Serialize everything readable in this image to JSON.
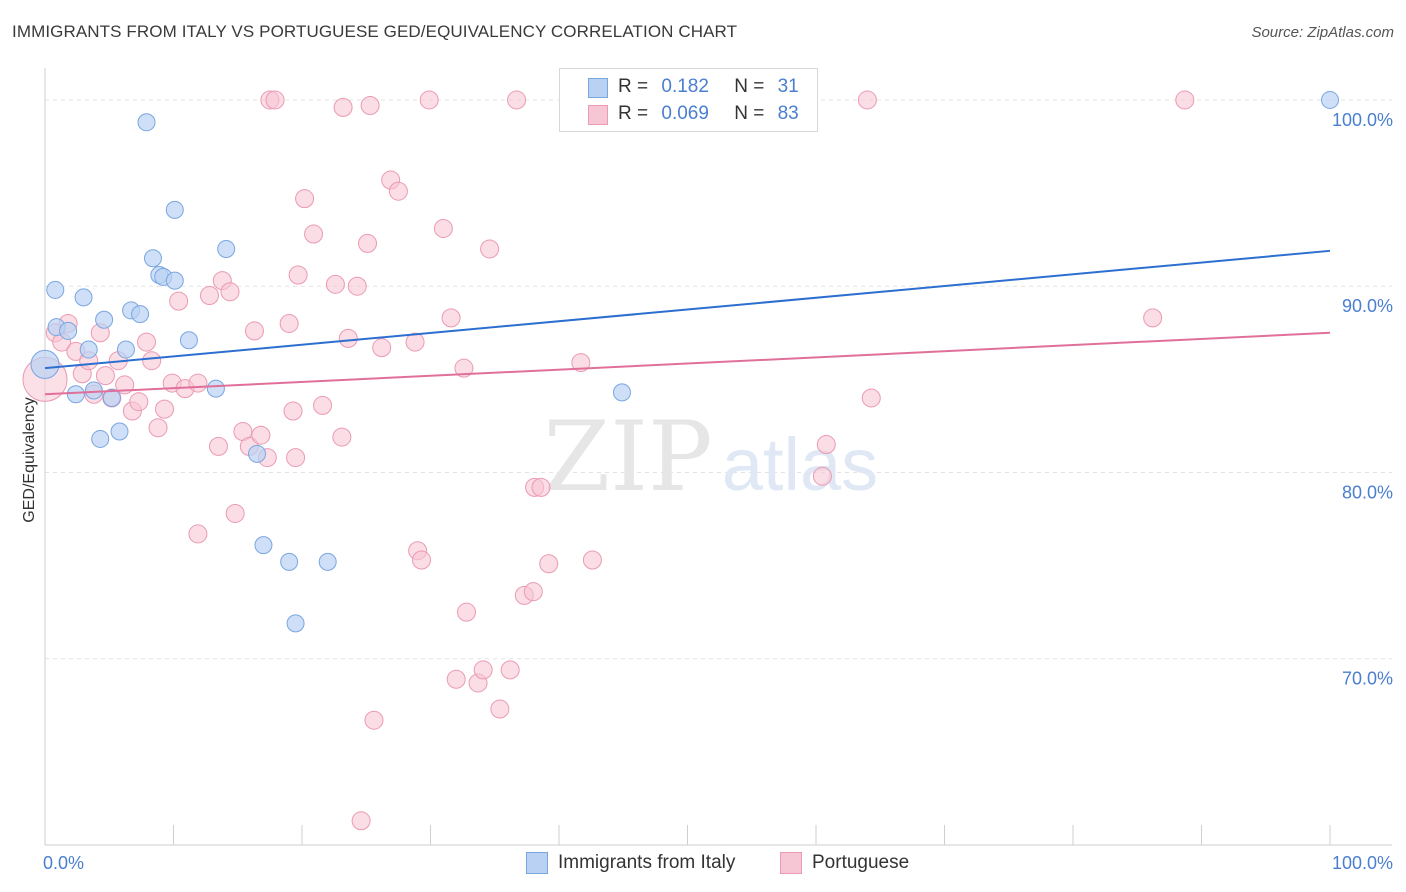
{
  "title": "IMMIGRANTS FROM ITALY VS PORTUGUESE GED/EQUIVALENCY CORRELATION CHART",
  "source": "Source: ZipAtlas.com",
  "watermark": {
    "zip": "ZIP",
    "atlas": "atlas"
  },
  "colors": {
    "blue_fill": "#b9d2f3",
    "blue_stroke": "#7aa6e0",
    "blue_line": "#2d6fd0",
    "pink_fill": "#f7c6d4",
    "pink_stroke": "#eb9ab3",
    "pink_line": "#e0709a",
    "tick_label": "#4a7fd0",
    "grid": "#e3e3e3"
  },
  "legend": {
    "r_label": "R =",
    "n_label": "N =",
    "italy": {
      "r": "0.182",
      "n": "31"
    },
    "portuguese": {
      "r": "0.069",
      "n": "83"
    }
  },
  "chart_data": {
    "type": "scatter",
    "title": "IMMIGRANTS FROM ITALY VS PORTUGUESE GED/EQUIVALENCY CORRELATION CHART",
    "xlabel": "",
    "ylabel": "GED/Equivalency",
    "xlim": [
      0,
      1.0
    ],
    "ylim": [
      0.6,
      1.015
    ],
    "x_tick_labels": [
      "0.0%",
      "100.0%"
    ],
    "y_ticks": [
      {
        "value": 1.0,
        "label": "100.0%"
      },
      {
        "value": 0.9,
        "label": "90.0%"
      },
      {
        "value": 0.8,
        "label": "80.0%"
      },
      {
        "value": 0.7,
        "label": "70.0%"
      }
    ],
    "series": [
      {
        "name": "Immigrants from Italy",
        "color": "#7aa6e0",
        "trend": {
          "x0": 0.0,
          "y0": 0.856,
          "x1": 1.0,
          "y1": 0.919
        },
        "points": [
          [
            0.0,
            0.858
          ],
          [
            0.008,
            0.898
          ],
          [
            0.009,
            0.878
          ],
          [
            0.018,
            0.876
          ],
          [
            0.024,
            0.842
          ],
          [
            0.03,
            0.894
          ],
          [
            0.034,
            0.866
          ],
          [
            0.038,
            0.844
          ],
          [
            0.043,
            0.818
          ],
          [
            0.046,
            0.882
          ],
          [
            0.052,
            0.84
          ],
          [
            0.058,
            0.822
          ],
          [
            0.063,
            0.866
          ],
          [
            0.067,
            0.887
          ],
          [
            0.074,
            0.885
          ],
          [
            0.079,
            0.988
          ],
          [
            0.084,
            0.915
          ],
          [
            0.089,
            0.906
          ],
          [
            0.092,
            0.905
          ],
          [
            0.101,
            0.903
          ],
          [
            0.101,
            0.941
          ],
          [
            0.112,
            0.871
          ],
          [
            0.133,
            0.845
          ],
          [
            0.141,
            0.92
          ],
          [
            0.165,
            0.81
          ],
          [
            0.17,
            0.761
          ],
          [
            0.19,
            0.752
          ],
          [
            0.195,
            0.719
          ],
          [
            0.22,
            0.752
          ],
          [
            0.449,
            0.843
          ],
          [
            1.0,
            1.0
          ]
        ]
      },
      {
        "name": "Portuguese",
        "color": "#eb9ab3",
        "trend": {
          "x0": 0.0,
          "y0": 0.842,
          "x1": 1.0,
          "y1": 0.875
        },
        "points": [
          [
            0.0,
            0.85
          ],
          [
            0.008,
            0.875
          ],
          [
            0.013,
            0.87
          ],
          [
            0.018,
            0.88
          ],
          [
            0.024,
            0.865
          ],
          [
            0.029,
            0.853
          ],
          [
            0.034,
            0.86
          ],
          [
            0.038,
            0.842
          ],
          [
            0.043,
            0.875
          ],
          [
            0.047,
            0.852
          ],
          [
            0.052,
            0.84
          ],
          [
            0.057,
            0.86
          ],
          [
            0.062,
            0.847
          ],
          [
            0.068,
            0.833
          ],
          [
            0.073,
            0.838
          ],
          [
            0.079,
            0.87
          ],
          [
            0.083,
            0.86
          ],
          [
            0.088,
            0.824
          ],
          [
            0.093,
            0.834
          ],
          [
            0.099,
            0.848
          ],
          [
            0.104,
            0.892
          ],
          [
            0.109,
            0.845
          ],
          [
            0.119,
            0.848
          ],
          [
            0.119,
            0.767
          ],
          [
            0.128,
            0.895
          ],
          [
            0.135,
            0.814
          ],
          [
            0.138,
            0.903
          ],
          [
            0.144,
            0.897
          ],
          [
            0.148,
            0.778
          ],
          [
            0.154,
            0.822
          ],
          [
            0.159,
            0.814
          ],
          [
            0.163,
            0.876
          ],
          [
            0.168,
            0.82
          ],
          [
            0.173,
            0.808
          ],
          [
            0.175,
            1.0
          ],
          [
            0.179,
            1.0
          ],
          [
            0.19,
            0.88
          ],
          [
            0.193,
            0.833
          ],
          [
            0.195,
            0.808
          ],
          [
            0.197,
            0.906
          ],
          [
            0.202,
            0.947
          ],
          [
            0.209,
            0.928
          ],
          [
            0.216,
            0.836
          ],
          [
            0.226,
            0.901
          ],
          [
            0.231,
            0.819
          ],
          [
            0.232,
            0.996
          ],
          [
            0.243,
            0.9
          ],
          [
            0.251,
            0.923
          ],
          [
            0.256,
            0.667
          ],
          [
            0.262,
            0.867
          ],
          [
            0.269,
            0.957
          ],
          [
            0.275,
            0.951
          ],
          [
            0.288,
            0.87
          ],
          [
            0.29,
            0.758
          ],
          [
            0.293,
            0.753
          ],
          [
            0.299,
            1.0
          ],
          [
            0.31,
            0.931
          ],
          [
            0.316,
            0.883
          ],
          [
            0.32,
            0.689
          ],
          [
            0.326,
            0.856
          ],
          [
            0.328,
            0.725
          ],
          [
            0.337,
            0.687
          ],
          [
            0.341,
            0.694
          ],
          [
            0.346,
            0.92
          ],
          [
            0.354,
            0.673
          ],
          [
            0.362,
            0.694
          ],
          [
            0.373,
            0.734
          ],
          [
            0.38,
            0.736
          ],
          [
            0.381,
            0.792
          ],
          [
            0.386,
            0.792
          ],
          [
            0.392,
            0.751
          ],
          [
            0.417,
            0.859
          ],
          [
            0.426,
            0.753
          ],
          [
            0.605,
            0.798
          ],
          [
            0.608,
            0.815
          ],
          [
            0.64,
            1.0
          ],
          [
            0.643,
            0.84
          ],
          [
            0.862,
            0.883
          ],
          [
            0.887,
            1.0
          ],
          [
            0.246,
            0.613
          ],
          [
            0.367,
            1.0
          ],
          [
            0.253,
            0.997
          ],
          [
            0.236,
            0.872
          ]
        ]
      }
    ]
  },
  "bottom_legend": {
    "italy": "Immigrants from Italy",
    "portuguese": "Portuguese"
  }
}
